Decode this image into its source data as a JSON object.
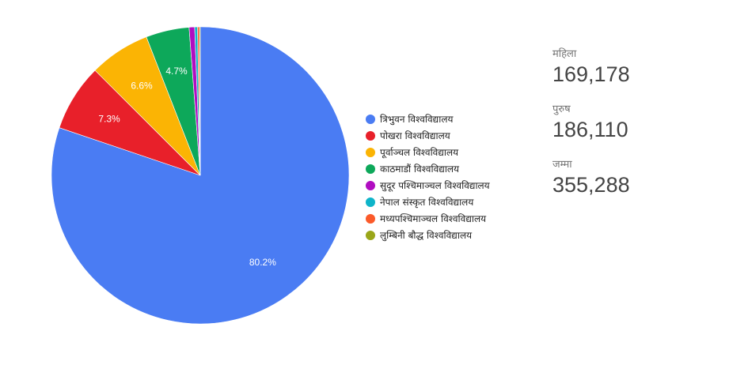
{
  "chart_data": {
    "type": "pie",
    "categories": [
      "त्रिभुवन विश्वविद्यालय",
      "पोखरा विश्वविद्यालय",
      "पूर्वाञ्चल विश्वविद्यालय",
      "काठमाडौं विश्वविद्यालय",
      "सुदूर पश्चिमाञ्चल विश्वविद्यालय",
      "नेपाल संस्कृत विश्वविद्यालय",
      "मध्यपश्चिमाञ्चल विश्वविद्यालय",
      "लुम्बिनी बौद्ध विश्वविद्यालय"
    ],
    "values": [
      80.2,
      7.3,
      6.6,
      4.7,
      0.6,
      0.3,
      0.2,
      0.1
    ],
    "value_labels": [
      "80.2%",
      "7.3%",
      "6.6%",
      "4.7%",
      "",
      "",
      "",
      ""
    ],
    "colors": [
      "#4a7cf3",
      "#e8202a",
      "#fbb404",
      "#0da85a",
      "#b00dc1",
      "#0eb4c9",
      "#fb5a2a",
      "#9aa619"
    ],
    "legend_position": "right"
  },
  "stats": [
    {
      "label": "महिला",
      "value": "169,178"
    },
    {
      "label": "पुरुष",
      "value": "186,110"
    },
    {
      "label": "जम्मा",
      "value": "355,288"
    }
  ]
}
